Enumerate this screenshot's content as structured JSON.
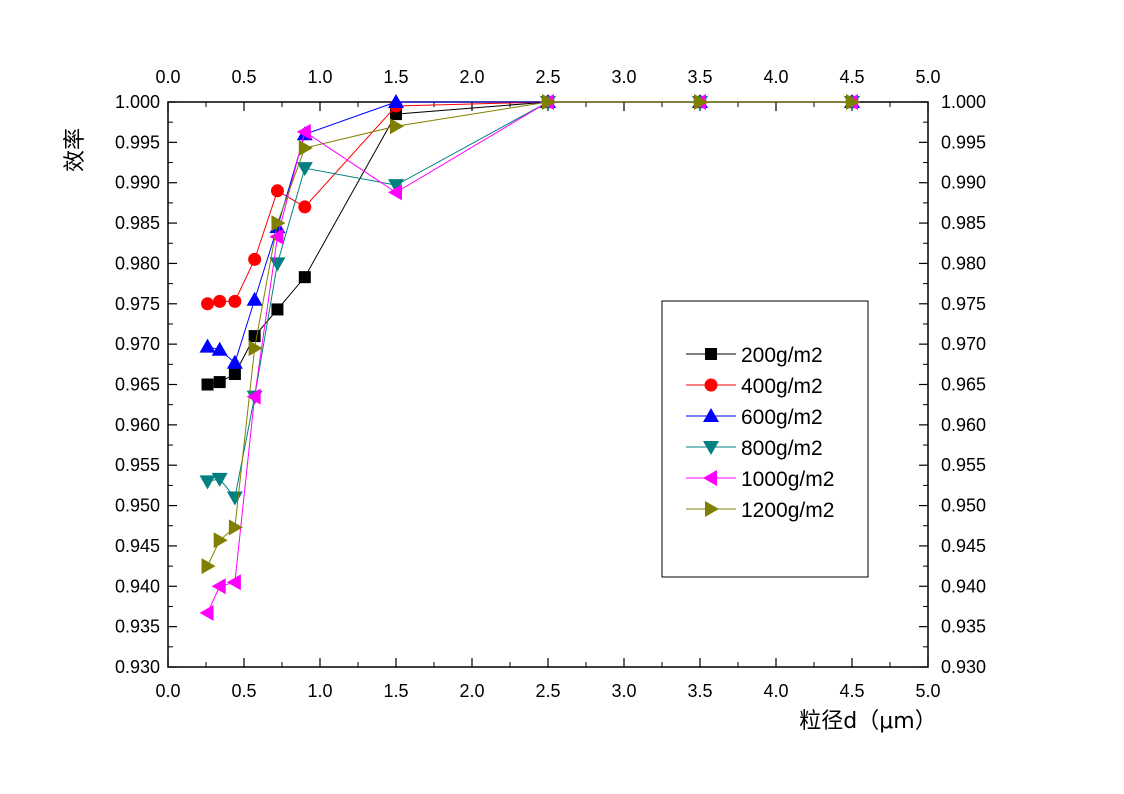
{
  "chart_data": {
    "type": "line",
    "xlabel": "粒径d（μm）",
    "ylabel": "效率",
    "xlim": [
      0.0,
      5.0
    ],
    "ylim": [
      0.93,
      1.0
    ],
    "x_ticks": [
      "0.0",
      "0.5",
      "1.0",
      "1.5",
      "2.0",
      "2.5",
      "3.0",
      "3.5",
      "4.0",
      "4.5",
      "5.0"
    ],
    "y_ticks": [
      "0.930",
      "0.935",
      "0.940",
      "0.945",
      "0.950",
      "0.955",
      "0.960",
      "0.965",
      "0.970",
      "0.975",
      "0.980",
      "0.985",
      "0.990",
      "0.995",
      "1.000"
    ],
    "legend_position": "center-right",
    "grid": false,
    "series": [
      {
        "name": "200g/m2",
        "color": "#000000",
        "marker": "square",
        "x": [
          0.26,
          0.34,
          0.44,
          0.57,
          0.72,
          0.9,
          1.5,
          2.5,
          3.5,
          4.5
        ],
        "y": [
          0.965,
          0.9653,
          0.9663,
          0.971,
          0.9743,
          0.9783,
          0.9985,
          1.0,
          1.0,
          1.0
        ]
      },
      {
        "name": "400g/m2",
        "color": "#ff0000",
        "marker": "circle",
        "x": [
          0.26,
          0.34,
          0.44,
          0.57,
          0.72,
          0.9,
          1.5,
          2.5,
          3.5,
          4.5
        ],
        "y": [
          0.975,
          0.9753,
          0.9753,
          0.9805,
          0.989,
          0.987,
          0.9995,
          1.0,
          1.0,
          1.0
        ]
      },
      {
        "name": "600g/m2",
        "color": "#0000ff",
        "marker": "triangle-up",
        "x": [
          0.26,
          0.34,
          0.44,
          0.57,
          0.72,
          0.9,
          1.5,
          2.5,
          3.5,
          4.5
        ],
        "y": [
          0.9697,
          0.9693,
          0.9677,
          0.9755,
          0.9845,
          0.996,
          1.0,
          1.0,
          1.0,
          1.0
        ]
      },
      {
        "name": "800g/m2",
        "color": "#008080",
        "marker": "triangle-down",
        "x": [
          0.26,
          0.34,
          0.44,
          0.57,
          0.72,
          0.9,
          1.5,
          2.5,
          3.5,
          4.5
        ],
        "y": [
          0.953,
          0.9533,
          0.951,
          0.9635,
          0.98,
          0.9918,
          0.9897,
          1.0,
          1.0,
          1.0
        ]
      },
      {
        "name": "1000g/m2",
        "color": "#ff00ff",
        "marker": "triangle-left",
        "x": [
          0.26,
          0.34,
          0.44,
          0.57,
          0.72,
          0.9,
          1.5,
          2.5,
          3.5,
          4.5
        ],
        "y": [
          0.9367,
          0.94,
          0.9405,
          0.9635,
          0.9833,
          0.9963,
          0.9888,
          1.0,
          1.0,
          1.0
        ]
      },
      {
        "name": "1200g/m2",
        "color": "#808000",
        "marker": "triangle-right",
        "x": [
          0.26,
          0.34,
          0.44,
          0.57,
          0.72,
          0.9,
          1.5,
          2.5,
          3.5,
          4.5
        ],
        "y": [
          0.9425,
          0.9457,
          0.9473,
          0.9695,
          0.985,
          0.9943,
          0.997,
          1.0,
          1.0,
          1.0
        ]
      }
    ]
  }
}
